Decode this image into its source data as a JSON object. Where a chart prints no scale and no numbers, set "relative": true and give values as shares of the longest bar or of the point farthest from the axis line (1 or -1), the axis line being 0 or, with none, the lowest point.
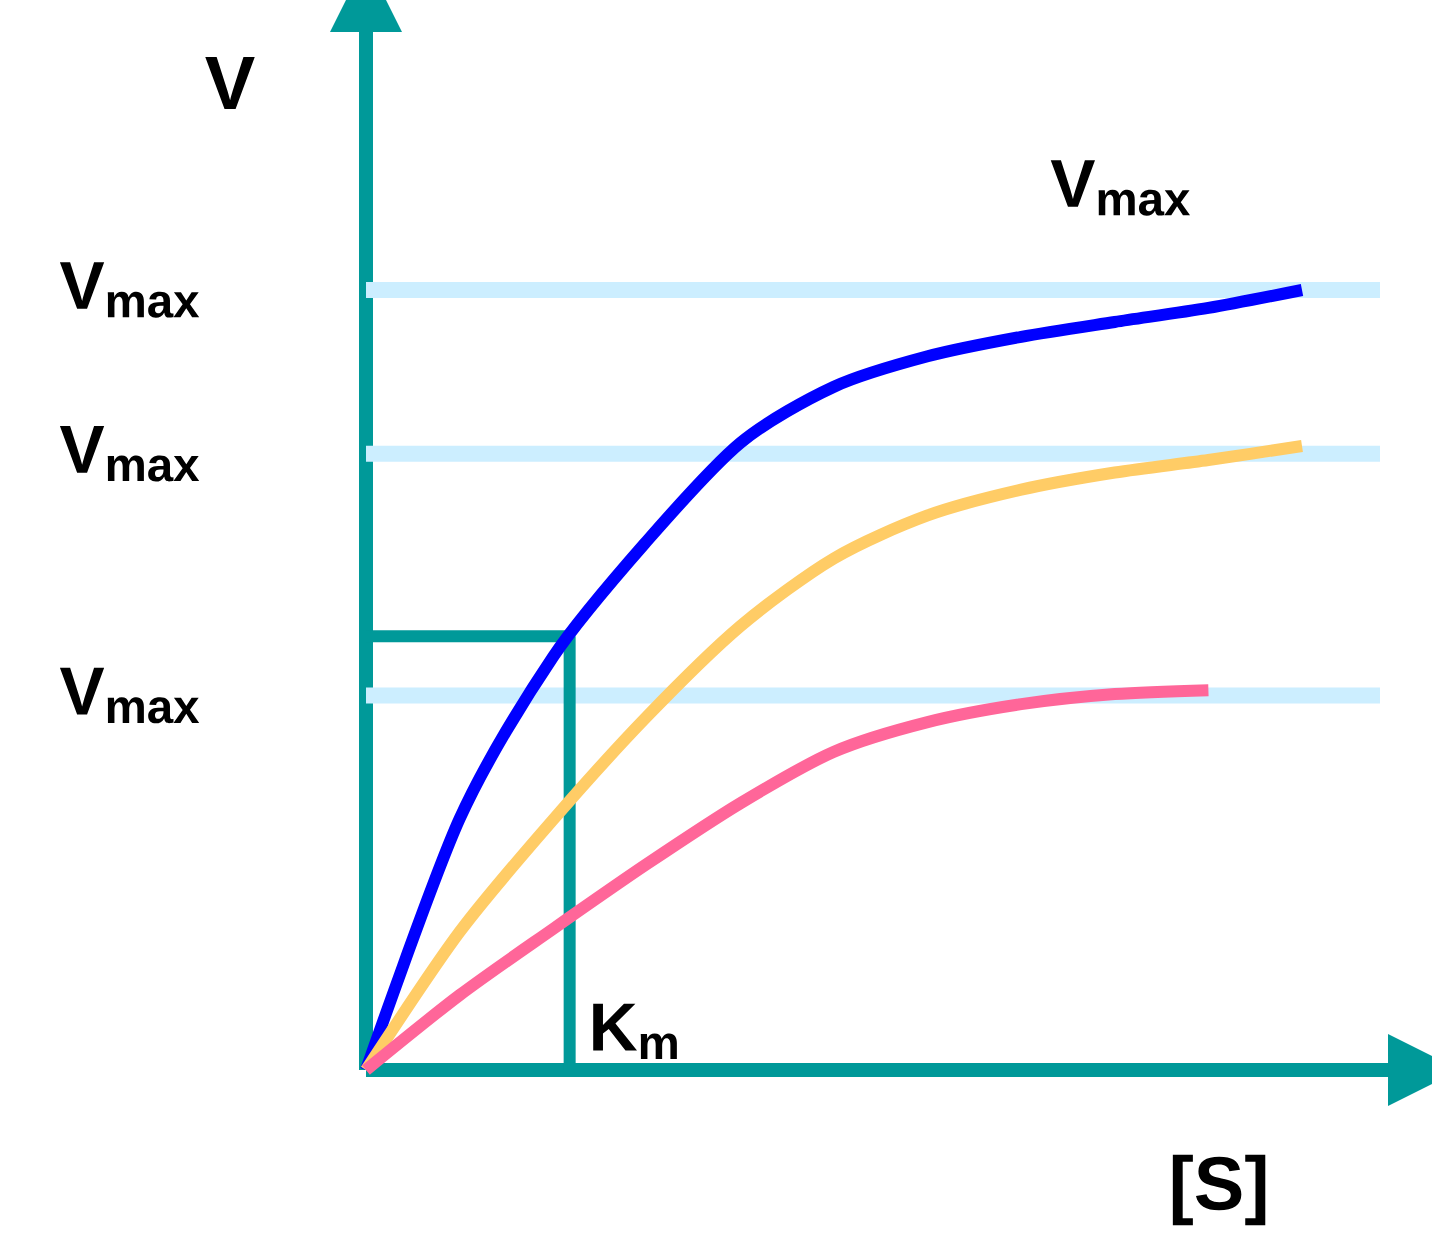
{
  "chart_data": {
    "type": "line",
    "relative": true,
    "xlabel": "[S]",
    "ylabel": "V",
    "legend": false,
    "grid": false,
    "marker": "none",
    "line_style": "solid",
    "categories": [
      null,
      null,
      null,
      null,
      null,
      null,
      null,
      null,
      null,
      null,
      null
    ],
    "series": [
      {
        "color": "#0000ff",
        "values": [
          0,
          0.322,
          0.53,
          0.678,
          0.804,
          0.876,
          0.915,
          0.94,
          0.959,
          0.977,
          1.0
        ]
      },
      {
        "color": "#ffcc66",
        "values": [
          0,
          0.177,
          0.321,
          0.453,
          0.569,
          0.656,
          0.711,
          0.744,
          0.766,
          0.782,
          0.8
        ]
      },
      {
        "color": "#ff6699",
        "values": [
          0,
          0.096,
          0.181,
          0.264,
          0.342,
          0.408,
          0.446,
          0.469,
          0.482,
          0.487,
          null
        ]
      }
    ],
    "ref_lines": [
      {
        "axis": "y",
        "value": 1.0,
        "label": "V$_{max}$",
        "color": "#cceeff"
      },
      {
        "axis": "y",
        "value": 0.79,
        "label": "V$_{max}$",
        "color": "#cceeff"
      },
      {
        "axis": "y",
        "value": 0.48,
        "label": "V$_{max}$",
        "color": "#cceeff"
      },
      {
        "axis": "y",
        "value": 0.556,
        "color": "#009999"
      }
    ],
    "annotations": [
      "V$_{max}$",
      "K$_{m}$"
    ]
  }
}
